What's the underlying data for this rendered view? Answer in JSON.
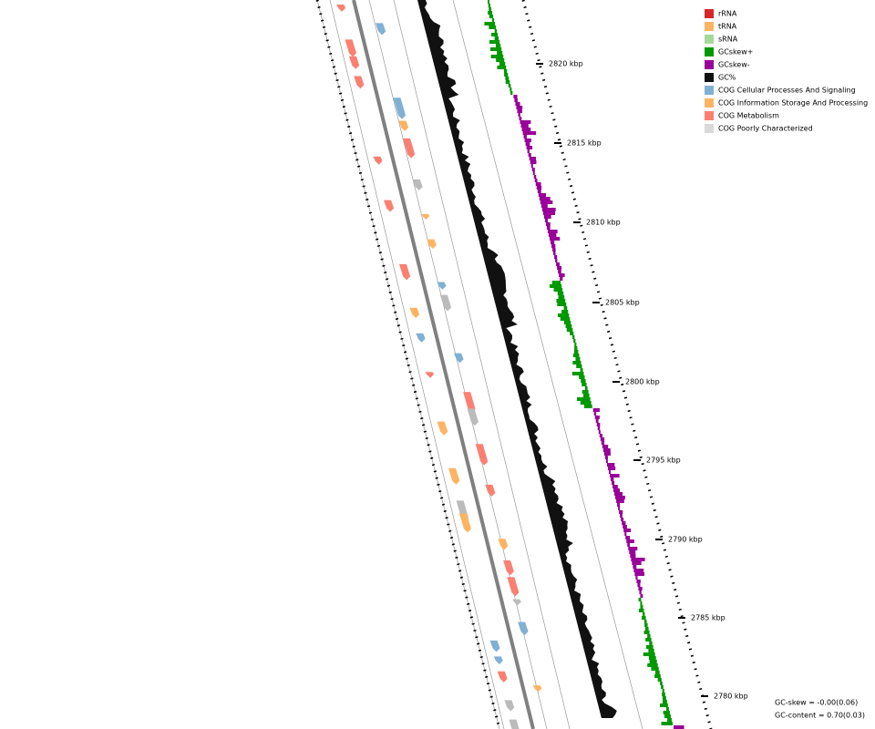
{
  "legend": [
    {
      "label": "rRNA",
      "color": "#d62728"
    },
    {
      "label": "tRNA",
      "color": "#fdb462"
    },
    {
      "label": "sRNA",
      "color": "#a6d99a"
    },
    {
      "label": "GCskew+",
      "color": "#009900"
    },
    {
      "label": "GCskew-",
      "color": "#990099"
    },
    {
      "label": "GC%",
      "color": "#111111"
    },
    {
      "label": "COG Cellular Processes And Signaling",
      "color": "#80b1d3"
    },
    {
      "label": "COG Information Storage And Processing",
      "color": "#fdb462"
    },
    {
      "label": "COG Metabolism",
      "color": "#fb8072"
    },
    {
      "label": "COG Poorly Characterized",
      "color": "#d9d9d9"
    }
  ],
  "ruler": {
    "labels": [
      "2820 kbp",
      "2815 kbp",
      "2810 kbp",
      "2805 kbp",
      "2800 kbp",
      "2795 kbp",
      "2790 kbp",
      "2785 kbp",
      "2780 kbp"
    ]
  },
  "footer": {
    "gc_skew": "GC-skew = -0.00(0.06)",
    "gc_content": "GC-content = 0.70(0.03)"
  }
}
